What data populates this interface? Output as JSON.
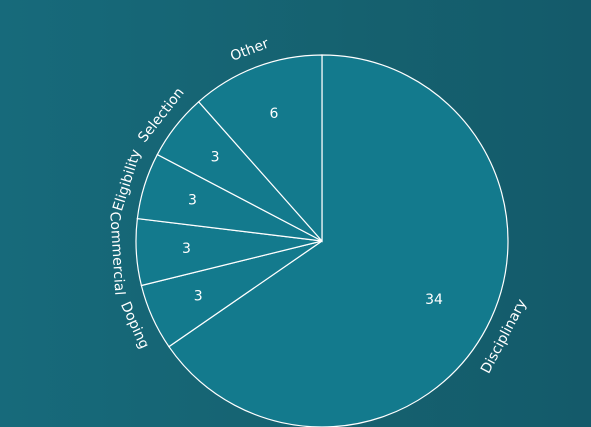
{
  "chart_data": {
    "type": "pie",
    "title": "",
    "categories": [
      "Disciplinary",
      "Doping",
      "Commercial",
      "Eligibility",
      "Selection",
      "Other"
    ],
    "values": [
      34,
      3,
      3,
      3,
      3,
      6
    ],
    "start_angle_deg": 0,
    "direction": "clockwise",
    "colors": {
      "slice": "#137a8d",
      "stroke": "#ffffff",
      "text": "#ffffff",
      "background": "#16677a"
    }
  }
}
